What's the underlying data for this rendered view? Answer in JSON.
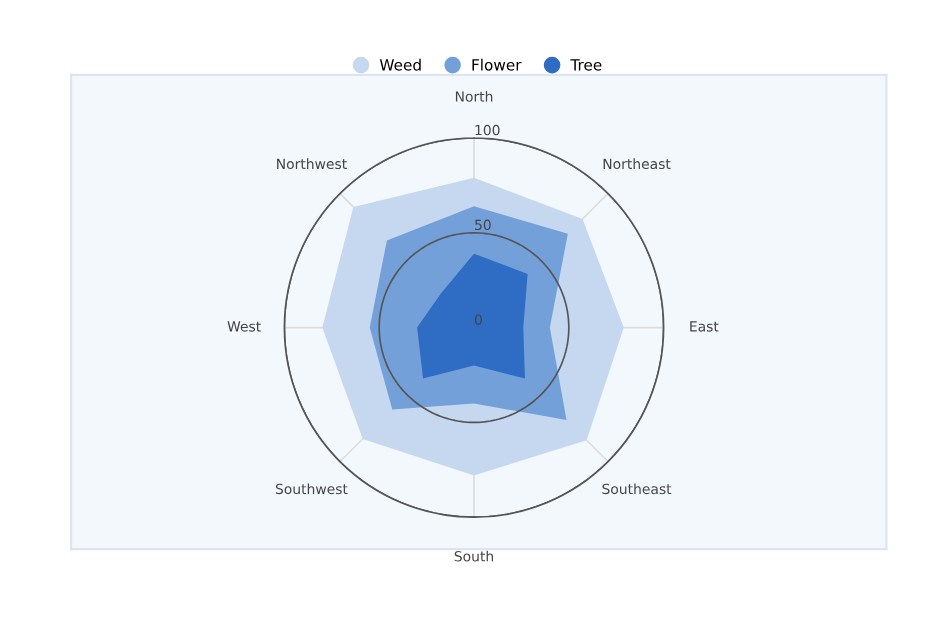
{
  "chart_data": {
    "type": "radar",
    "categories": [
      "North",
      "Northeast",
      "East",
      "Southeast",
      "South",
      "Southwest",
      "West",
      "Northwest"
    ],
    "series": [
      {
        "name": "Weed",
        "color": "#c5d8f0",
        "values": [
          79,
          81,
          79,
          84,
          78,
          83,
          80,
          90
        ]
      },
      {
        "name": "Flower",
        "color": "#74a0da",
        "values": [
          64,
          70,
          40,
          69,
          40,
          61,
          55,
          65
        ]
      },
      {
        "name": "Tree",
        "color": "#2f6cc4",
        "values": [
          39,
          40,
          26,
          38,
          20,
          38,
          30,
          25
        ]
      }
    ],
    "ylim": [
      0,
      100
    ],
    "yticks": [
      0,
      50,
      100
    ],
    "grid": true,
    "legend": "top",
    "marker": "none"
  }
}
